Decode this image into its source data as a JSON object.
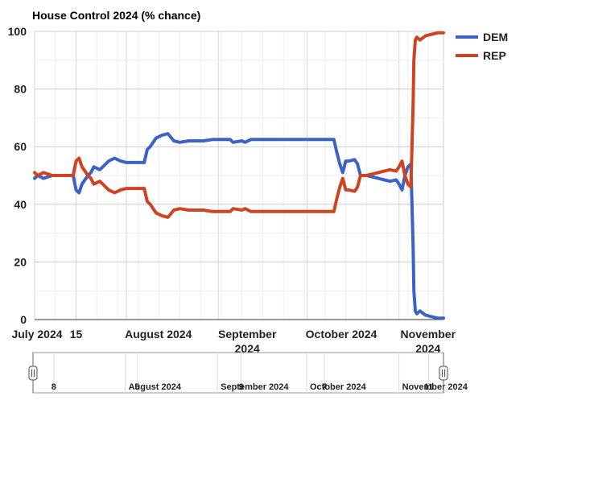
{
  "chart_data": {
    "type": "line",
    "title": "House Control 2024 (% chance)",
    "xlabel": "",
    "ylabel": "",
    "x_range": [
      "2024-07-01",
      "2024-11-16"
    ],
    "ylim": [
      0,
      100
    ],
    "y_ticks": [
      0,
      20,
      40,
      60,
      80,
      100
    ],
    "grid": true,
    "legend_position": "right",
    "x_tick_labels": [
      {
        "date": "2024-07-01",
        "lines": [
          "July 2024"
        ]
      },
      {
        "date": "2024-07-15",
        "lines": [
          "15"
        ]
      },
      {
        "date": "2024-08-01",
        "lines": [
          "August 2024"
        ]
      },
      {
        "date": "2024-09-01",
        "lines": [
          "September",
          "2024"
        ]
      },
      {
        "date": "2024-10-01",
        "lines": [
          "October 2024"
        ]
      },
      {
        "date": "2024-11-01",
        "lines": [
          "November",
          "2024"
        ]
      }
    ],
    "navigator_tick_labels": [
      {
        "date": "2024-07-08",
        "label": "8"
      },
      {
        "date": "2024-08-01",
        "label": "August 2024"
      },
      {
        "date": "2024-08-05",
        "label": "5"
      },
      {
        "date": "2024-09-01",
        "label": "September 2024"
      },
      {
        "date": "2024-09-09",
        "label": "9"
      },
      {
        "date": "2024-10-01",
        "label": "October 2024"
      },
      {
        "date": "2024-10-07",
        "label": "7"
      },
      {
        "date": "2024-11-01",
        "label": "November 2024"
      },
      {
        "date": "2024-11-11",
        "label": "11"
      }
    ],
    "series": [
      {
        "name": "DEM",
        "color": "#3c62c8",
        "points": [
          [
            "2024-07-01",
            49
          ],
          [
            "2024-07-02",
            50
          ],
          [
            "2024-07-04",
            49
          ],
          [
            "2024-07-07",
            50
          ],
          [
            "2024-07-10",
            50
          ],
          [
            "2024-07-14",
            50
          ],
          [
            "2024-07-15",
            45
          ],
          [
            "2024-07-16",
            44
          ],
          [
            "2024-07-17",
            47
          ],
          [
            "2024-07-19",
            50
          ],
          [
            "2024-07-20",
            51
          ],
          [
            "2024-07-21",
            53
          ],
          [
            "2024-07-23",
            52
          ],
          [
            "2024-07-24",
            53
          ],
          [
            "2024-07-26",
            55
          ],
          [
            "2024-07-28",
            56
          ],
          [
            "2024-07-30",
            55
          ],
          [
            "2024-08-01",
            54.5
          ],
          [
            "2024-08-07",
            54.5
          ],
          [
            "2024-08-08",
            59
          ],
          [
            "2024-08-09",
            60
          ],
          [
            "2024-08-11",
            63
          ],
          [
            "2024-08-13",
            64
          ],
          [
            "2024-08-15",
            64.5
          ],
          [
            "2024-08-17",
            62
          ],
          [
            "2024-08-19",
            61.5
          ],
          [
            "2024-08-22",
            62
          ],
          [
            "2024-08-27",
            62
          ],
          [
            "2024-08-30",
            62.5
          ],
          [
            "2024-09-05",
            62.5
          ],
          [
            "2024-09-06",
            61.5
          ],
          [
            "2024-09-09",
            62
          ],
          [
            "2024-09-10",
            61.5
          ],
          [
            "2024-09-12",
            62.5
          ],
          [
            "2024-09-20",
            62.5
          ],
          [
            "2024-09-30",
            62.5
          ],
          [
            "2024-10-10",
            62.5
          ],
          [
            "2024-10-11",
            58
          ],
          [
            "2024-10-12",
            54
          ],
          [
            "2024-10-13",
            51
          ],
          [
            "2024-10-14",
            55
          ],
          [
            "2024-10-15",
            55
          ],
          [
            "2024-10-17",
            55.5
          ],
          [
            "2024-10-18",
            54
          ],
          [
            "2024-10-19",
            50
          ],
          [
            "2024-10-21",
            50
          ],
          [
            "2024-10-23",
            49.5
          ],
          [
            "2024-10-25",
            49
          ],
          [
            "2024-10-27",
            48.5
          ],
          [
            "2024-10-29",
            48
          ],
          [
            "2024-10-31",
            48.5
          ],
          [
            "2024-11-01",
            47
          ],
          [
            "2024-11-02",
            45
          ],
          [
            "2024-11-03",
            50
          ],
          [
            "2024-11-04",
            53
          ],
          [
            "2024-11-05",
            54
          ],
          [
            "2024-11-05T18",
            25
          ],
          [
            "2024-11-06",
            10
          ],
          [
            "2024-11-06T12",
            3
          ],
          [
            "2024-11-07",
            2
          ],
          [
            "2024-11-08",
            3
          ],
          [
            "2024-11-10",
            1.5
          ],
          [
            "2024-11-12",
            1
          ],
          [
            "2024-11-14",
            0.5
          ],
          [
            "2024-11-16",
            0.5
          ]
        ]
      },
      {
        "name": "REP",
        "color": "#cc4422",
        "points": [
          [
            "2024-07-01",
            51
          ],
          [
            "2024-07-02",
            50
          ],
          [
            "2024-07-04",
            51
          ],
          [
            "2024-07-07",
            50
          ],
          [
            "2024-07-10",
            50
          ],
          [
            "2024-07-14",
            50
          ],
          [
            "2024-07-15",
            55
          ],
          [
            "2024-07-16",
            56
          ],
          [
            "2024-07-17",
            53
          ],
          [
            "2024-07-19",
            50
          ],
          [
            "2024-07-20",
            49
          ],
          [
            "2024-07-21",
            47
          ],
          [
            "2024-07-23",
            48
          ],
          [
            "2024-07-24",
            47
          ],
          [
            "2024-07-26",
            45
          ],
          [
            "2024-07-28",
            44
          ],
          [
            "2024-07-30",
            45
          ],
          [
            "2024-08-01",
            45.5
          ],
          [
            "2024-08-07",
            45.5
          ],
          [
            "2024-08-08",
            41
          ],
          [
            "2024-08-09",
            40
          ],
          [
            "2024-08-11",
            37
          ],
          [
            "2024-08-13",
            36
          ],
          [
            "2024-08-15",
            35.5
          ],
          [
            "2024-08-17",
            38
          ],
          [
            "2024-08-19",
            38.5
          ],
          [
            "2024-08-22",
            38
          ],
          [
            "2024-08-27",
            38
          ],
          [
            "2024-08-30",
            37.5
          ],
          [
            "2024-09-05",
            37.5
          ],
          [
            "2024-09-06",
            38.5
          ],
          [
            "2024-09-09",
            38
          ],
          [
            "2024-09-10",
            38.5
          ],
          [
            "2024-09-12",
            37.5
          ],
          [
            "2024-09-20",
            37.5
          ],
          [
            "2024-09-30",
            37.5
          ],
          [
            "2024-10-10",
            37.5
          ],
          [
            "2024-10-11",
            42
          ],
          [
            "2024-10-12",
            46
          ],
          [
            "2024-10-13",
            49
          ],
          [
            "2024-10-14",
            45
          ],
          [
            "2024-10-15",
            45
          ],
          [
            "2024-10-17",
            44.5
          ],
          [
            "2024-10-18",
            46
          ],
          [
            "2024-10-19",
            50
          ],
          [
            "2024-10-21",
            50
          ],
          [
            "2024-10-23",
            50.5
          ],
          [
            "2024-10-25",
            51
          ],
          [
            "2024-10-27",
            51.5
          ],
          [
            "2024-10-29",
            52
          ],
          [
            "2024-10-31",
            51.5
          ],
          [
            "2024-11-01",
            53
          ],
          [
            "2024-11-02",
            55
          ],
          [
            "2024-11-03",
            50
          ],
          [
            "2024-11-04",
            47
          ],
          [
            "2024-11-05",
            46
          ],
          [
            "2024-11-05T18",
            75
          ],
          [
            "2024-11-06",
            90
          ],
          [
            "2024-11-06T12",
            97
          ],
          [
            "2024-11-07",
            98
          ],
          [
            "2024-11-08",
            97
          ],
          [
            "2024-11-10",
            98.5
          ],
          [
            "2024-11-12",
            99
          ],
          [
            "2024-11-14",
            99.5
          ],
          [
            "2024-11-16",
            99.5
          ]
        ]
      }
    ]
  }
}
